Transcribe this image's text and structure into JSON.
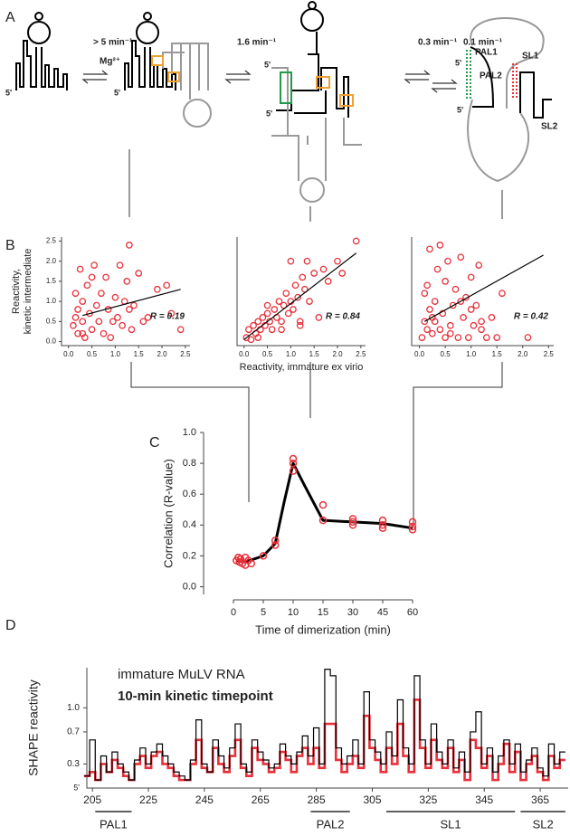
{
  "panel_labels": [
    "A",
    "B",
    "C",
    "D"
  ],
  "diagram": {
    "rates": [
      {
        "text": "> 5 min⁻¹",
        "color": "#f0a030"
      },
      {
        "text": "1.6 min⁻¹",
        "color": "#1f9a4a"
      },
      {
        "text": "0.3 min⁻¹",
        "color": "#e8303a"
      },
      {
        "text": "0.1 min⁻¹",
        "color": "#000000"
      }
    ],
    "cofactor": "Mg²⁺",
    "five_prime": "5'",
    "regions": [
      {
        "label": "PAL1",
        "color": "#1f9a4a"
      },
      {
        "label": "PAL2",
        "color": "#e8303a"
      },
      {
        "label": "SL1",
        "color": "#f0a030"
      },
      {
        "label": "SL2",
        "color": "#f0a030"
      }
    ]
  },
  "chart_data": [
    {
      "type": "scatter",
      "color": "#e8303a",
      "x": [
        0.1,
        0.15,
        0.2,
        0.2,
        0.25,
        0.3,
        0.3,
        0.35,
        0.4,
        0.45,
        0.5,
        0.5,
        0.6,
        0.65,
        0.7,
        0.75,
        0.8,
        0.85,
        0.9,
        1.0,
        1.05,
        1.1,
        1.15,
        1.2,
        1.25,
        1.3,
        1.35,
        1.4,
        1.5,
        1.6,
        1.7,
        1.9,
        2.1,
        2.2,
        2.4,
        0.15,
        0.3,
        0.55,
        0.95,
        1.3
      ],
      "values": [
        0.4,
        1.2,
        0.2,
        0.8,
        1.8,
        0.5,
        1.0,
        0.1,
        1.4,
        0.7,
        0.3,
        1.6,
        0.9,
        0.5,
        1.2,
        0.2,
        1.6,
        0.8,
        0.1,
        1.1,
        0.6,
        1.9,
        0.4,
        1.0,
        1.5,
        2.4,
        0.3,
        0.9,
        1.7,
        0.5,
        0.6,
        1.3,
        1.4,
        0.7,
        0.3,
        0.6,
        0.2,
        1.9,
        0.5,
        0.8
      ],
      "xlim": [
        -0.15,
        2.6
      ],
      "ylim": [
        -0.1,
        2.6
      ],
      "xticks": [
        {
          "value": 0,
          "label": "0.0"
        },
        0.5,
        {
          "value": 1,
          "label": "1.0"
        },
        1.5,
        {
          "value": 2,
          "label": "2.0"
        },
        2.5
      ],
      "yticks": [
        {
          "value": 0,
          "label": "0.0"
        },
        0.5,
        {
          "value": 1,
          "label": "1.0"
        },
        1.5,
        {
          "value": 2,
          "label": "2.0"
        },
        2.5
      ],
      "ylabel": [
        "Reactivity,",
        "kinetic intermediate"
      ],
      "annotation": "R = 0.19",
      "fit": {
        "x": [
          0.3,
          2.4
        ],
        "values": [
          0.65,
          1.3
        ]
      }
    },
    {
      "type": "scatter",
      "color": "#e8303a",
      "x": [
        0.05,
        0.1,
        0.15,
        0.2,
        0.25,
        0.3,
        0.35,
        0.4,
        0.45,
        0.5,
        0.55,
        0.6,
        0.65,
        0.7,
        0.75,
        0.8,
        0.85,
        0.9,
        0.95,
        1.0,
        1.05,
        1.1,
        1.15,
        1.2,
        1.25,
        1.3,
        1.35,
        1.4,
        1.5,
        1.6,
        1.7,
        1.8,
        2.0,
        2.1,
        2.4,
        0.3,
        0.5,
        0.8,
        1.0,
        1.2
      ],
      "values": [
        0.1,
        0.3,
        0.05,
        0.4,
        0.2,
        0.5,
        0.3,
        0.6,
        0.4,
        0.7,
        0.5,
        0.3,
        0.8,
        0.6,
        1.0,
        0.5,
        0.9,
        1.2,
        0.7,
        1.0,
        0.8,
        1.4,
        1.1,
        0.4,
        1.6,
        1.3,
        2.0,
        1.0,
        1.7,
        0.6,
        1.8,
        1.5,
        2.0,
        1.7,
        2.5,
        0.1,
        0.9,
        0.3,
        2.0,
        0.5
      ],
      "xlim": [
        -0.15,
        2.6
      ],
      "ylim": [
        -0.1,
        2.6
      ],
      "xticks": [
        {
          "value": 0,
          "label": "0.0"
        },
        0.5,
        {
          "value": 1,
          "label": "1.0"
        },
        1.5,
        {
          "value": 2,
          "label": "2.0"
        },
        2.5
      ],
      "xlabel": "Reactivity, immature ex virio",
      "annotation": "R = 0.84",
      "fit": {
        "x": [
          0,
          2.4
        ],
        "values": [
          0.05,
          2.2
        ]
      }
    },
    {
      "type": "scatter",
      "color": "#e8303a",
      "x": [
        0.05,
        0.1,
        0.1,
        0.15,
        0.2,
        0.2,
        0.25,
        0.3,
        0.3,
        0.35,
        0.4,
        0.45,
        0.5,
        0.5,
        0.55,
        0.6,
        0.65,
        0.7,
        0.75,
        0.8,
        0.85,
        0.9,
        0.95,
        1.0,
        1.05,
        1.1,
        1.15,
        1.2,
        1.3,
        1.4,
        1.5,
        1.6,
        2.1,
        0.15,
        0.25,
        0.4,
        0.6,
        0.8,
        1.0,
        1.2
      ],
      "values": [
        0.1,
        0.5,
        1.2,
        0.3,
        0.8,
        2.3,
        0.2,
        1.0,
        0.5,
        1.8,
        0.3,
        0.7,
        1.5,
        0.1,
        2.0,
        0.4,
        0.9,
        1.3,
        0.1,
        2.1,
        0.6,
        1.1,
        0.1,
        1.6,
        0.4,
        0.9,
        1.9,
        0.3,
        0.1,
        0.6,
        0.1,
        1.2,
        0.1,
        1.4,
        0.6,
        2.4,
        0.2,
        1.0,
        0.8,
        0.5
      ],
      "xlim": [
        -0.15,
        2.6
      ],
      "ylim": [
        -0.1,
        2.6
      ],
      "xticks": [
        {
          "value": 0,
          "label": "0.0"
        },
        0.5,
        {
          "value": 1,
          "label": "1.0"
        },
        1.5,
        {
          "value": 2,
          "label": "2.0"
        },
        2.5
      ],
      "annotation": "R = 0.42",
      "fit": {
        "x": [
          0.1,
          2.4
        ],
        "values": [
          0.5,
          2.15
        ]
      }
    },
    {
      "type": "line",
      "color": "#e8303a",
      "curve_color": "#000000",
      "x": [
        0.5,
        0.8,
        1,
        1.2,
        1.5,
        2,
        2,
        2.5,
        3,
        5,
        7,
        7,
        10,
        10,
        10,
        15,
        15,
        30,
        30,
        30,
        45,
        45,
        45,
        60,
        60,
        60
      ],
      "values": [
        0.17,
        0.19,
        0.16,
        0.18,
        0.15,
        0.19,
        0.14,
        0.17,
        0.15,
        0.2,
        0.27,
        0.3,
        0.83,
        0.8,
        0.75,
        0.53,
        0.43,
        0.44,
        0.42,
        0.4,
        0.43,
        0.4,
        0.38,
        0.42,
        0.39,
        0.37
      ],
      "curve": {
        "x": [
          0.5,
          2,
          5,
          7,
          8.5,
          10,
          12,
          15,
          30,
          45,
          60
        ],
        "values": [
          0.17,
          0.16,
          0.2,
          0.28,
          0.55,
          0.8,
          0.65,
          0.43,
          0.42,
          0.41,
          0.38
        ]
      },
      "xlim": [
        0,
        60
      ],
      "ylim": [
        -0.05,
        1.0
      ],
      "xticks": [
        0,
        5,
        10,
        15,
        30,
        45,
        60
      ],
      "yticks": [
        {
          "value": 0,
          "label": "0.0"
        },
        0.2,
        0.4,
        0.6,
        0.8,
        {
          "value": 1,
          "label": "1.0"
        }
      ],
      "xlabel": "Time of dimerization (min)",
      "ylabel": "Correlation (R-value)"
    },
    {
      "type": "step",
      "x": [
        203,
        205,
        207,
        209,
        211,
        213,
        215,
        217,
        219,
        221,
        223,
        225,
        227,
        229,
        231,
        233,
        235,
        237,
        239,
        241,
        243,
        245,
        247,
        249,
        251,
        253,
        255,
        257,
        259,
        261,
        263,
        265,
        267,
        269,
        271,
        273,
        275,
        277,
        279,
        281,
        283,
        285,
        287,
        289,
        291,
        293,
        295,
        297,
        299,
        301,
        303,
        305,
        307,
        309,
        311,
        313,
        315,
        317,
        319,
        321,
        323,
        325,
        327,
        329,
        331,
        333,
        335,
        337,
        339,
        341,
        343,
        345,
        347,
        349,
        351,
        353,
        355,
        357,
        359,
        361,
        363,
        365,
        367,
        369,
        371,
        373
      ],
      "series": [
        {
          "name": "immature MuLV RNA",
          "color": "#000000",
          "values": [
            0.15,
            0.6,
            0.1,
            0.4,
            0.2,
            0.45,
            0.3,
            0.2,
            0.1,
            0.35,
            0.5,
            0.3,
            0.45,
            0.55,
            0.4,
            0.3,
            0.2,
            0.15,
            0.1,
            0.35,
            0.85,
            0.3,
            0.2,
            0.6,
            0.4,
            0.25,
            0.5,
            0.8,
            0.3,
            0.2,
            0.6,
            0.45,
            0.35,
            0.25,
            0.3,
            0.55,
            0.4,
            0.3,
            0.45,
            0.65,
            0.4,
            0.75,
            0.3,
            1.48,
            1.4,
            0.5,
            0.3,
            0.4,
            0.6,
            0.3,
            1.2,
            0.6,
            0.45,
            0.3,
            0.7,
            0.4,
            1.1,
            0.5,
            0.3,
            1.4,
            0.6,
            0.3,
            0.8,
            0.45,
            0.3,
            0.6,
            0.25,
            0.45,
            0.2,
            0.7,
            0.95,
            0.3,
            0.5,
            0.2,
            0.4,
            0.6,
            0.3,
            0.55,
            0.2,
            0.35,
            0.5,
            0.25,
            0.15,
            0.55,
            0.3,
            0.45
          ]
        },
        {
          "name": "10-min kinetic timepoint",
          "color": "#e8303a",
          "values": [
            0.15,
            0.2,
            0.1,
            0.3,
            0.2,
            0.35,
            0.25,
            0.15,
            0.1,
            0.3,
            0.4,
            0.25,
            0.4,
            0.45,
            0.3,
            0.25,
            0.15,
            0.1,
            0.1,
            0.3,
            0.6,
            0.25,
            0.2,
            0.5,
            0.3,
            0.2,
            0.4,
            0.6,
            0.25,
            0.15,
            0.5,
            0.35,
            0.3,
            0.2,
            0.25,
            0.45,
            0.35,
            0.2,
            0.4,
            0.5,
            0.3,
            0.5,
            0.25,
            0.8,
            0.8,
            0.35,
            0.2,
            0.3,
            0.4,
            0.25,
            0.9,
            0.5,
            0.35,
            0.2,
            0.5,
            0.3,
            0.8,
            0.4,
            0.2,
            1.1,
            0.5,
            0.25,
            0.6,
            0.35,
            0.25,
            0.5,
            0.2,
            0.35,
            0.1,
            0.6,
            0.5,
            0.25,
            0.4,
            0.1,
            0.3,
            0.55,
            0.2,
            0.45,
            0.1,
            0.3,
            0.4,
            0.2,
            0.1,
            0.4,
            0.25,
            0.35
          ]
        }
      ],
      "xlim": [
        203,
        375
      ],
      "ylim": [
        0,
        1.5
      ],
      "xticks": [
        205,
        225,
        245,
        265,
        285,
        305,
        325,
        345,
        365
      ],
      "yticks": [
        0.3,
        0.7,
        {
          "value": 1,
          "label": "1.0"
        }
      ],
      "ylabel": "SHAPE reactivity",
      "start_label": "5'",
      "regions": [
        {
          "label": "PAL1",
          "start": 206,
          "end": 219
        },
        {
          "label": "PAL2",
          "start": 283,
          "end": 297
        },
        {
          "label": "SL1",
          "start": 310,
          "end": 356
        },
        {
          "label": "SL2",
          "start": 358,
          "end": 374
        }
      ]
    }
  ]
}
